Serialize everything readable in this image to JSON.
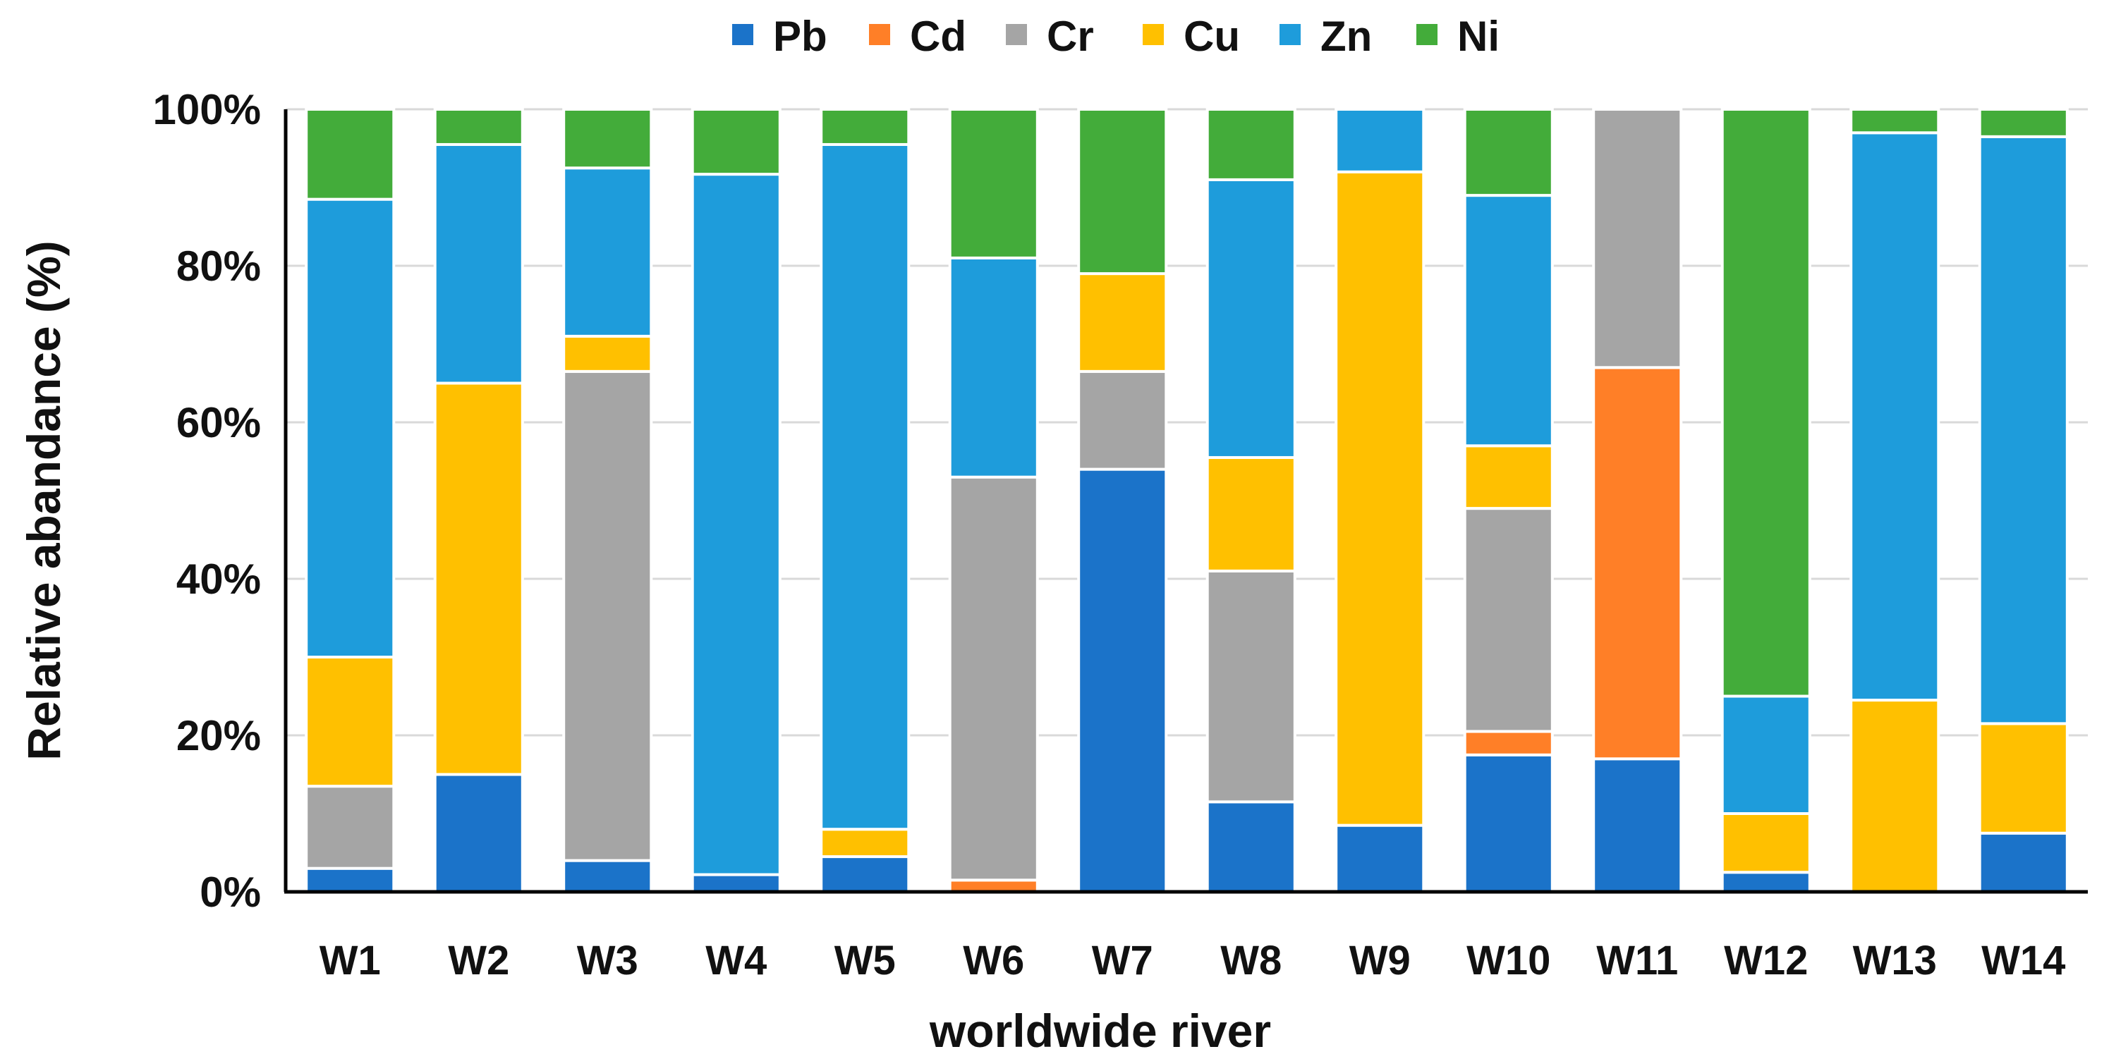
{
  "chart_data": {
    "type": "bar",
    "stacked": true,
    "title": "",
    "xlabel": "worldwide river",
    "ylabel": "Relative abandance (%)",
    "ylim": [
      0,
      100
    ],
    "yticks": [
      "0%",
      "20%",
      "40%",
      "60%",
      "80%",
      "100%"
    ],
    "ytick_values": [
      0,
      20,
      40,
      60,
      80,
      100
    ],
    "grid": true,
    "legend_position": "top",
    "categories": [
      "W1",
      "W2",
      "W3",
      "W4",
      "W5",
      "W6",
      "W7",
      "W8",
      "W9",
      "W10",
      "W11",
      "W12",
      "W13",
      "W14"
    ],
    "series": [
      {
        "name": "Pb",
        "color": "#1B73C9",
        "values": [
          3,
          15,
          4,
          2.2,
          4.5,
          0,
          54,
          11.5,
          8.5,
          17.5,
          17,
          2.5,
          0,
          7.5
        ]
      },
      {
        "name": "Cd",
        "color": "#FF7F27",
        "values": [
          0,
          0,
          0,
          0,
          0,
          1.5,
          0,
          0,
          0,
          3,
          50,
          0,
          0,
          0
        ]
      },
      {
        "name": "Cr",
        "color": "#A5A5A5",
        "values": [
          10.5,
          0,
          62.5,
          0,
          0,
          51.5,
          12.5,
          29.5,
          0,
          28.5,
          33,
          0,
          0,
          0
        ]
      },
      {
        "name": "Cu",
        "color": "#FFC000",
        "values": [
          16.5,
          50,
          4.5,
          0,
          3.5,
          0,
          12.5,
          14.5,
          83.5,
          8,
          0,
          7.5,
          24.5,
          14
        ]
      },
      {
        "name": "Zn",
        "color": "#1E9CDB",
        "values": [
          58.5,
          30.5,
          21.5,
          89.5,
          87.5,
          28,
          0,
          35.5,
          8,
          32,
          0,
          15,
          72.5,
          75
        ]
      },
      {
        "name": "Ni",
        "color": "#43AC3A",
        "values": [
          11.5,
          4.5,
          7.5,
          8.3,
          4.5,
          19,
          21,
          9,
          0,
          11,
          0,
          75,
          3,
          3.5
        ]
      }
    ]
  }
}
